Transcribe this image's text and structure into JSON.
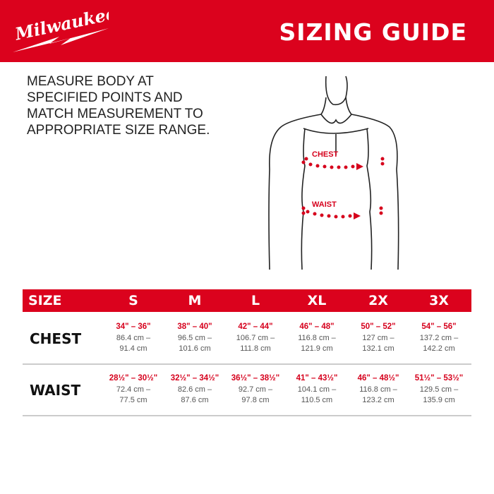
{
  "header": {
    "brand": "Milwaukee",
    "title": "SIZING GUIDE",
    "color": "#db021d"
  },
  "instructions": "MEASURE BODY AT SPECIFIED POINTS AND MATCH MEASUREMENT TO APPROPRIATE SIZE RANGE.",
  "figure": {
    "chest_label": "CHEST",
    "waist_label": "WAIST"
  },
  "table": {
    "size_header": "SIZE",
    "sizes": [
      "S",
      "M",
      "L",
      "XL",
      "2X",
      "3X"
    ],
    "rows": [
      {
        "label": "CHEST",
        "cells": [
          {
            "inches": "34\" – 36\"",
            "cm": "86.4 cm – 91.4 cm"
          },
          {
            "inches": "38\" – 40\"",
            "cm": "96.5 cm – 101.6 cm"
          },
          {
            "inches": "42\" – 44\"",
            "cm": "106.7 cm – 111.8 cm"
          },
          {
            "inches": "46\" – 48\"",
            "cm": "116.8 cm – 121.9 cm"
          },
          {
            "inches": "50\" – 52\"",
            "cm": "127 cm – 132.1 cm"
          },
          {
            "inches": "54\" – 56\"",
            "cm": "137.2 cm – 142.2 cm"
          }
        ]
      },
      {
        "label": "WAIST",
        "cells": [
          {
            "inches": "28½\" – 30½\"",
            "cm": "72.4 cm – 77.5 cm"
          },
          {
            "inches": "32½\" – 34½\"",
            "cm": "82.6 cm – 87.6 cm"
          },
          {
            "inches": "36½\" – 38½\"",
            "cm": "92.7 cm – 97.8 cm"
          },
          {
            "inches": "41\" – 43½\"",
            "cm": "104.1 cm – 110.5 cm"
          },
          {
            "inches": "46\" – 48½\"",
            "cm": "116.8 cm – 123.2 cm"
          },
          {
            "inches": "51½\" – 53½\"",
            "cm": "129.5 cm – 135.9 cm"
          }
        ]
      }
    ]
  }
}
